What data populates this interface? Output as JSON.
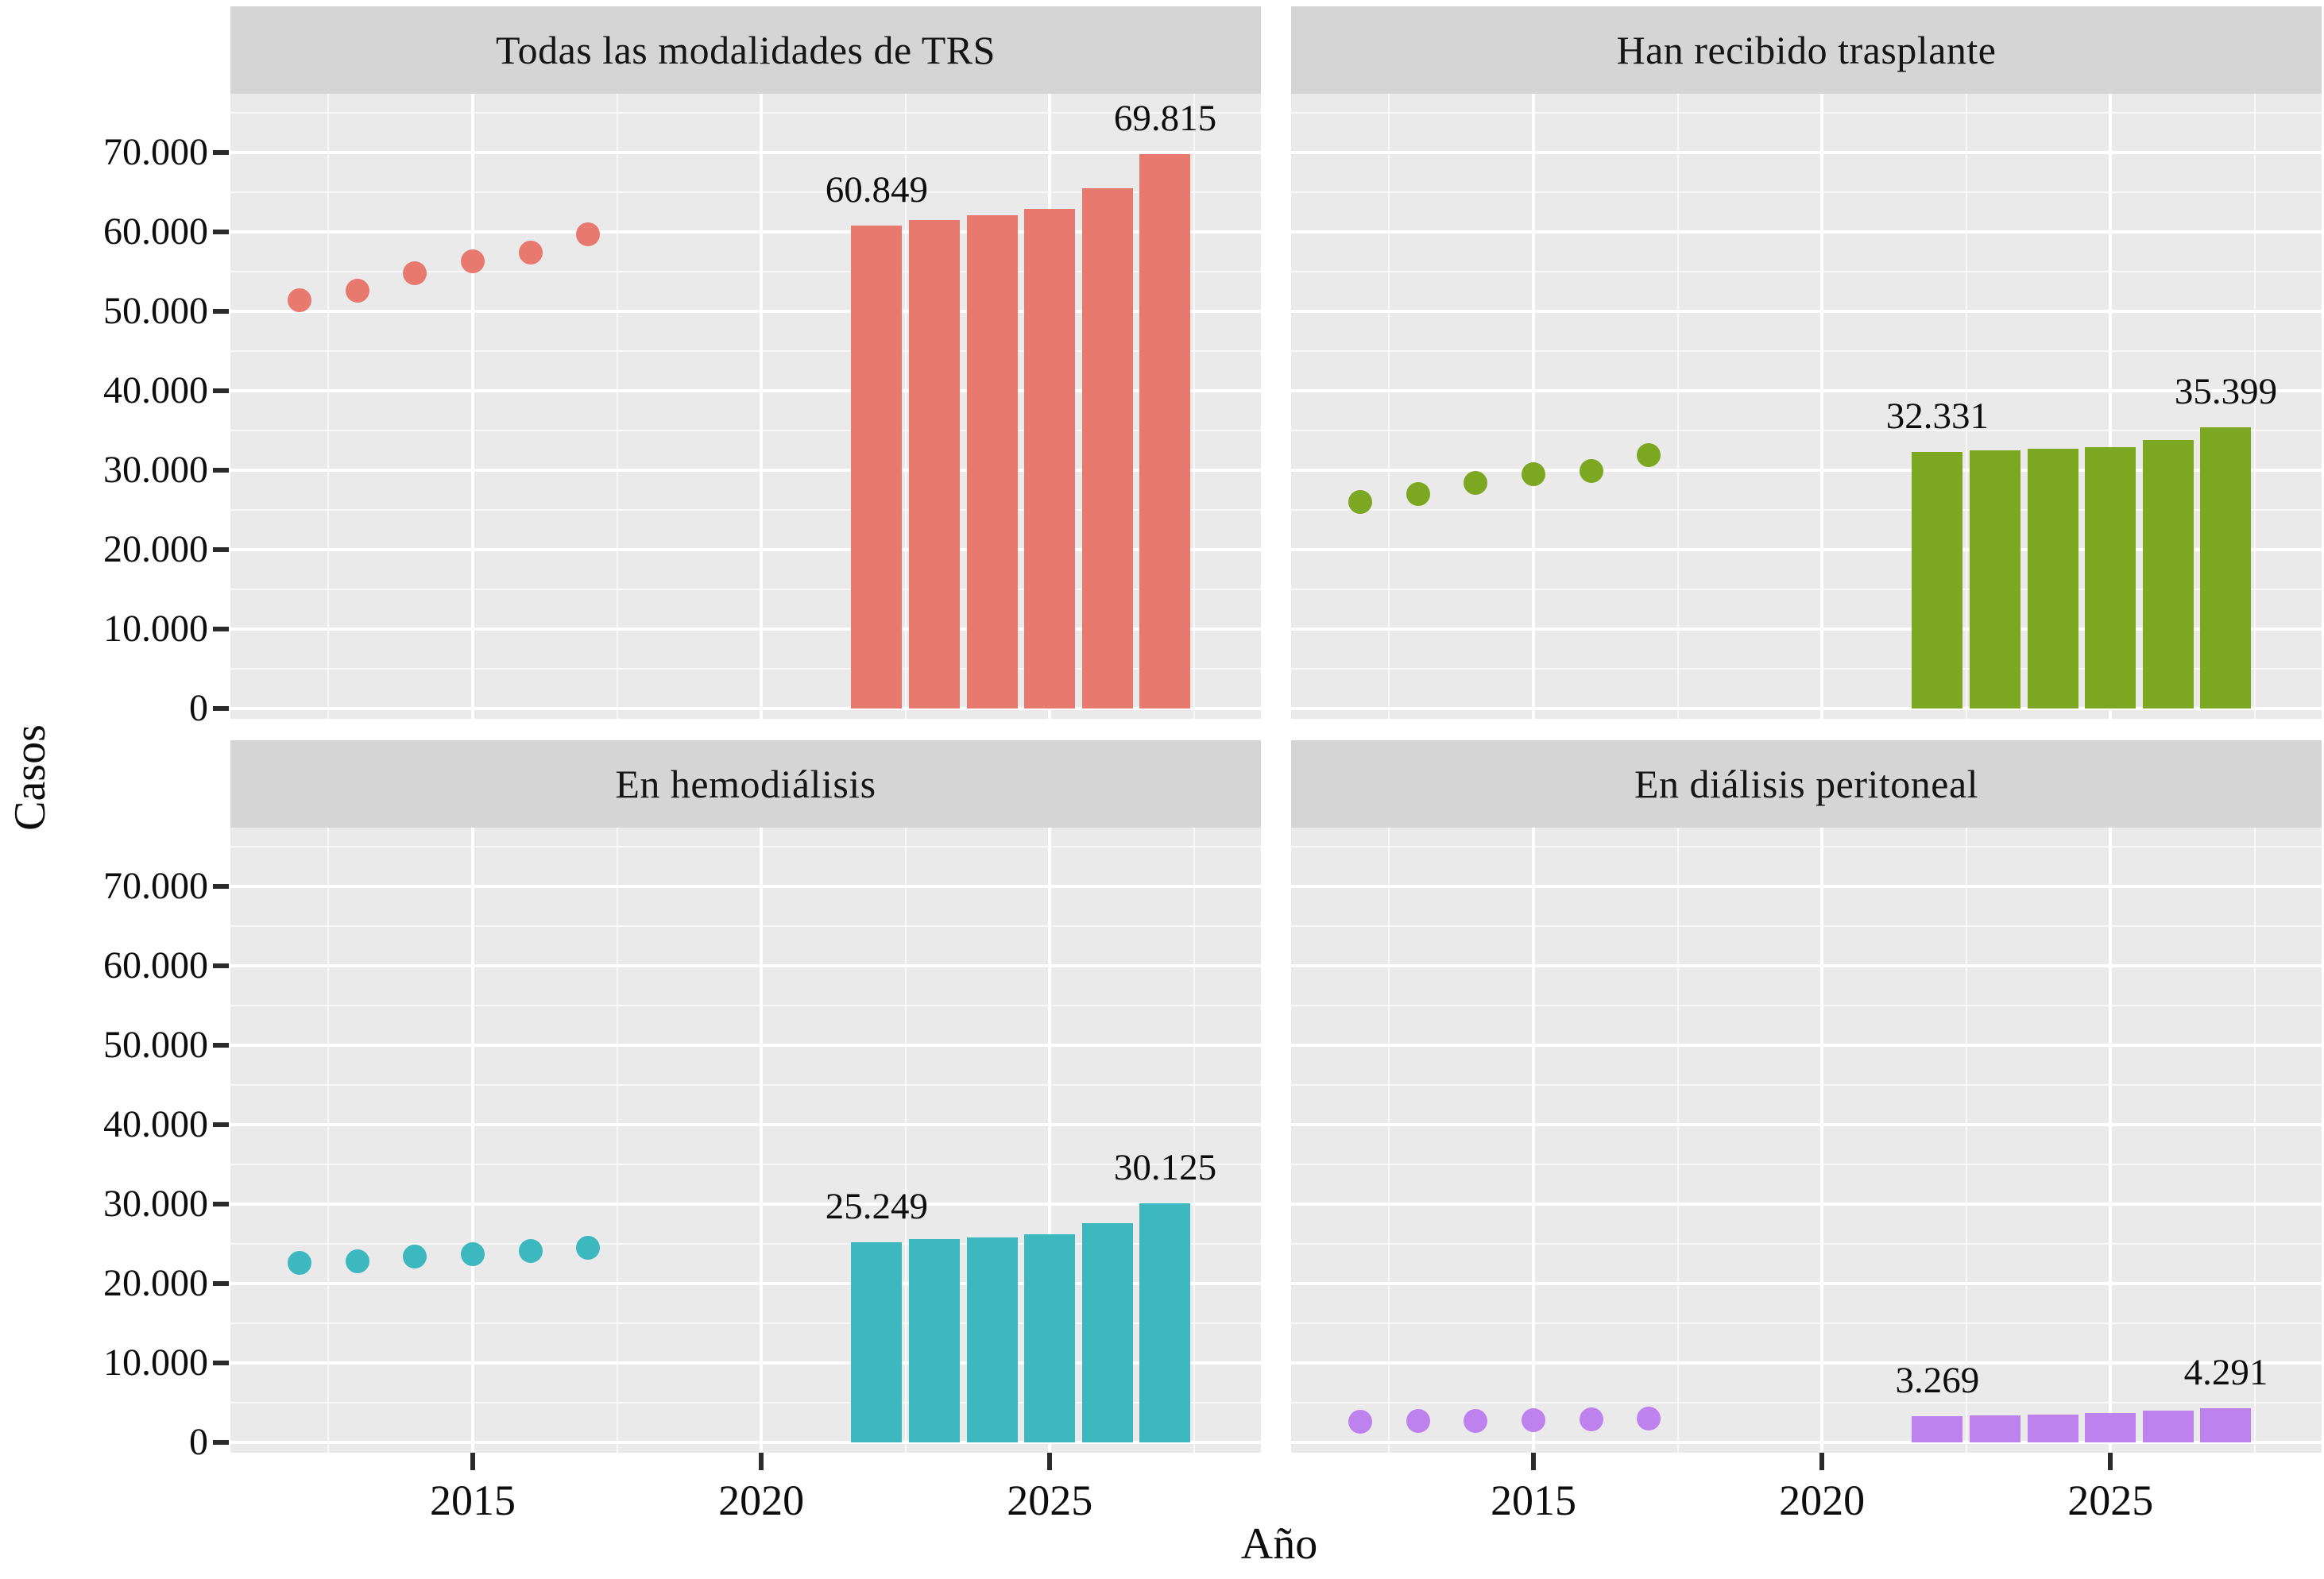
{
  "figure": {
    "x_axis_title": "Año",
    "y_axis_title": "Casos"
  },
  "axes": {
    "y_tick_labels": [
      "70.000",
      "60.000",
      "50.000",
      "40.000",
      "30.000",
      "20.000",
      "10.000",
      "0"
    ],
    "y_tick_values": [
      70000,
      60000,
      50000,
      40000,
      30000,
      20000,
      10000,
      0
    ],
    "x_tick_labels": [
      "2015",
      "2020",
      "2025"
    ],
    "x_tick_values": [
      2015,
      2020,
      2025
    ],
    "x_minor_grid_years": [
      2012.5,
      2017.5,
      2022.5,
      2027.5
    ],
    "y_minor_grid_values": [
      5000,
      15000,
      25000,
      35000,
      45000,
      55000,
      65000,
      75000
    ],
    "x_range": [
      2010.8,
      2028.66
    ],
    "y_range": [
      -1300,
      77400
    ],
    "grid": true,
    "legend": "none"
  },
  "chart_data": {
    "type": "faceted scatter+bar",
    "title": "",
    "xlabel": "Año",
    "ylabel": "Casos",
    "observed_years": [
      2012,
      2013,
      2014,
      2015,
      2016,
      2017
    ],
    "projected_years": [
      2022,
      2023,
      2024,
      2025,
      2026,
      2027
    ],
    "facets": [
      {
        "title": "Todas las modalidades de TRS",
        "color": "#e8796e",
        "observed_values": [
          51400,
          52600,
          54800,
          56300,
          57400,
          59700
        ],
        "projected_values": [
          60849,
          61500,
          62100,
          62900,
          65500,
          69815
        ],
        "first_bar_label": "60.849",
        "last_bar_label": "69.815"
      },
      {
        "title": "Han recibido trasplante",
        "color": "#7ca821",
        "observed_values": [
          26000,
          27000,
          28400,
          29500,
          29900,
          31900
        ],
        "projected_values": [
          32331,
          32500,
          32700,
          32950,
          33800,
          35399
        ],
        "first_bar_label": "32.331",
        "last_bar_label": "35.399"
      },
      {
        "title": "En hemodiálisis",
        "color": "#3eb8bf",
        "observed_values": [
          22600,
          22800,
          23400,
          23700,
          24100,
          24500
        ],
        "projected_values": [
          25249,
          25650,
          25850,
          26200,
          27650,
          30125
        ],
        "first_bar_label": "25.249",
        "last_bar_label": "30.125"
      },
      {
        "title": "En diálisis peritoneal",
        "color": "#be82ef",
        "observed_values": [
          2600,
          2700,
          2750,
          2850,
          2900,
          3000
        ],
        "projected_values": [
          3269,
          3450,
          3550,
          3700,
          4050,
          4291
        ],
        "first_bar_label": "3.269",
        "last_bar_label": "4.291"
      }
    ]
  },
  "colors": {
    "panel_bg": "#eaeaea",
    "strip_bg": "#d5d5d5",
    "grid_major": "#ffffff",
    "tick_mark": "#2b2b2b",
    "text": "#111111",
    "background": "#ffffff"
  }
}
